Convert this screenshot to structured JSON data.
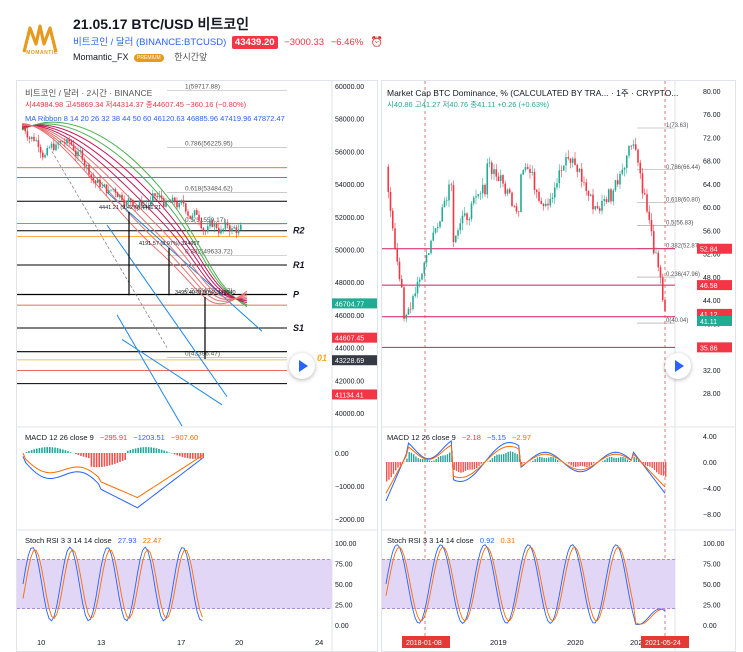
{
  "header": {
    "title": "21.05.17 BTC/USD 비트코인",
    "symbol": "비트코인 / 달러 (BINANCE:BTCUSD)",
    "price": "43439.20",
    "change": "−3000.33",
    "change_pct": "−6.46%",
    "author": "Momantic_FX",
    "premium_label": "PREMIUM",
    "time_ago": "한시간앞",
    "logo_text": "MOMANTIC"
  },
  "left_chart": {
    "title": "비트코인 / 달러 · 2시간 · BINANCE",
    "ohlc": "시44984.98 고45869.34 저44314.37 종44607.45 −360.16 (−0.80%)",
    "ribbon_legend": "MA Ribbon 8 14 20 26 32 38 44 50 60  46120.63  46885.96  47419.96  47872.47",
    "fib_labels": [
      {
        "level": 1,
        "text": "1(59717.88)",
        "value": 59717.88
      },
      {
        "level": 0.786,
        "text": "0.786(56225.95)",
        "value": 56225.95
      },
      {
        "level": 0.618,
        "text": "0.618(53484.62)",
        "value": 53484.62
      },
      {
        "level": 0.5,
        "text": "0.5(51559.17)",
        "value": 51559.17
      },
      {
        "level": 0.382,
        "text": "0.382(49633.72)",
        "value": 49633.72
      },
      {
        "level": 0.236,
        "text": "0.236(47251.33)",
        "value": 47251.33
      },
      {
        "level": 0,
        "text": "0(43396.47)",
        "value": 43396.47
      }
    ],
    "sr_labels": [
      "R2",
      "R1",
      "P",
      "S1",
      "01"
    ],
    "measure_labels": [
      "4441.21 (9.42%) 4441.21",
      "4191.57 (8.97%) 324957",
      "3495.40 (8.00%) 349540"
    ],
    "price_axis": [
      "60000.00",
      "58000.00",
      "56000.00",
      "54000.00",
      "52000.00",
      "50000.00",
      "48000.00",
      "46000.00",
      "44000.00",
      "42000.00",
      "40000.00"
    ],
    "tags": [
      {
        "text": "46704.77",
        "color": "#22ab94"
      },
      {
        "text": "44607.45",
        "color": "#f23645"
      },
      {
        "text": "43228.69",
        "color": "#363a45"
      },
      {
        "text": "41134.41",
        "color": "#f23645"
      }
    ],
    "macd_legend": "MACD 12 26 close 9",
    "macd_values": [
      "−295.91",
      "−1203.51",
      "−907.60"
    ],
    "macd_axis": [
      "0.00",
      "−1000.00",
      "−2000.00"
    ],
    "stoch_legend": "Stoch RSI 3 3 14 14 close",
    "stoch_values": [
      "27.93",
      "22.47"
    ],
    "stoch_axis": [
      "100.00",
      "75.00",
      "50.00",
      "25.00",
      "0.00"
    ],
    "time_axis": [
      "10",
      "13",
      "17",
      "20",
      "24"
    ]
  },
  "right_chart": {
    "title": "Market Cap BTC Dominance, % (CALCULATED BY TRA... · 1주 · CRYPTO...",
    "ohlc": "시40.86 고41.27 저40.76 종41.11 +0.26 (+0.63%)",
    "fib_labels": [
      {
        "text": "1(73.63)",
        "value": 73.63
      },
      {
        "text": "0.786(66.44)",
        "value": 66.44
      },
      {
        "text": "0.618(60.80)",
        "value": 60.8
      },
      {
        "text": "0.5(56.83)",
        "value": 56.83
      },
      {
        "text": "0.382(52.87)",
        "value": 52.87
      },
      {
        "text": "0.236(47.96)",
        "value": 47.96
      },
      {
        "text": "0(40.04)",
        "value": 40.04
      }
    ],
    "axis": [
      "80.00",
      "76.00",
      "72.00",
      "68.00",
      "64.00",
      "60.00",
      "56.00",
      "52.00",
      "48.00",
      "44.00",
      "40.00",
      "36.00",
      "32.00",
      "28.00"
    ],
    "tags": [
      {
        "text": "52.84",
        "color": "#f23645"
      },
      {
        "text": "46.58",
        "color": "#f23645"
      },
      {
        "text": "41.12",
        "color": "#f23645"
      },
      {
        "text": "41.11",
        "color": "#22ab94"
      },
      {
        "text": "35.86",
        "color": "#f23645"
      }
    ],
    "macd_legend": "MACD 12 26 close 9",
    "macd_values": [
      "−2.18",
      "−5.15",
      "−2.97"
    ],
    "macd_axis": [
      "4.00",
      "0.00",
      "−4.00",
      "−8.00"
    ],
    "stoch_legend": "Stoch RSI 3 3 14 14 close",
    "stoch_values": [
      "0.92",
      "0.31"
    ],
    "stoch_axis": [
      "100.00",
      "75.00",
      "50.00",
      "25.00",
      "0.00"
    ],
    "time_axis": [
      "2019",
      "2020",
      "202"
    ],
    "date_marker_left": "2018-01-08",
    "date_marker_right": "2021-05-24"
  },
  "colors": {
    "up": "#22ab94",
    "down": "#f23645",
    "accent": "#2962ff",
    "ribbon": "#c2185b",
    "stoch_band": "#e1d6f5",
    "brand": "#e69a1f"
  }
}
